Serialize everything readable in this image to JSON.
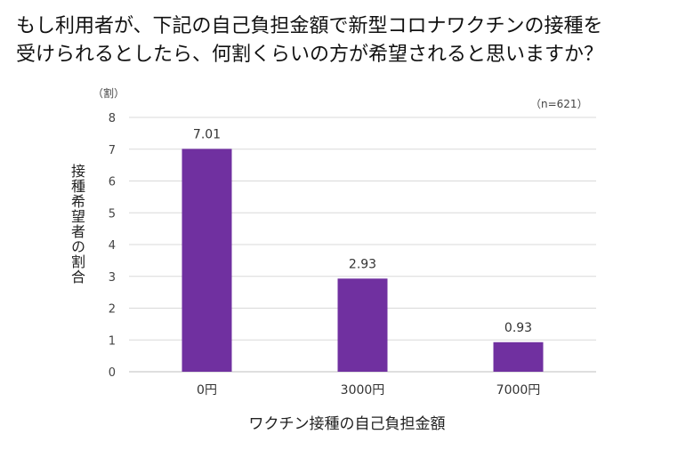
{
  "chart_data": {
    "type": "bar",
    "title_lines": [
      "もし利用者が、下記の自己負担金額で新型コロナワクチンの接種を",
      "受けられるとしたら、何割くらいの方が希望されると思いますか？"
    ],
    "unit_label": "（割）",
    "sample_note": "（n=621）",
    "ylabel": "接種希望者の割合",
    "xlabel": "ワクチン接種の自己負担金額",
    "categories": [
      "0円",
      "3000円",
      "7000円"
    ],
    "values": [
      7.01,
      2.93,
      0.93
    ],
    "value_labels": [
      "7.01",
      "2.93",
      "0.93"
    ],
    "ylim": [
      0,
      8
    ],
    "yticks": [
      "0",
      "1",
      "2",
      "3",
      "4",
      "5",
      "6",
      "7",
      "8"
    ],
    "grid": true,
    "bar_color": "#7030a0",
    "grid_color": "#d9d9d9"
  }
}
